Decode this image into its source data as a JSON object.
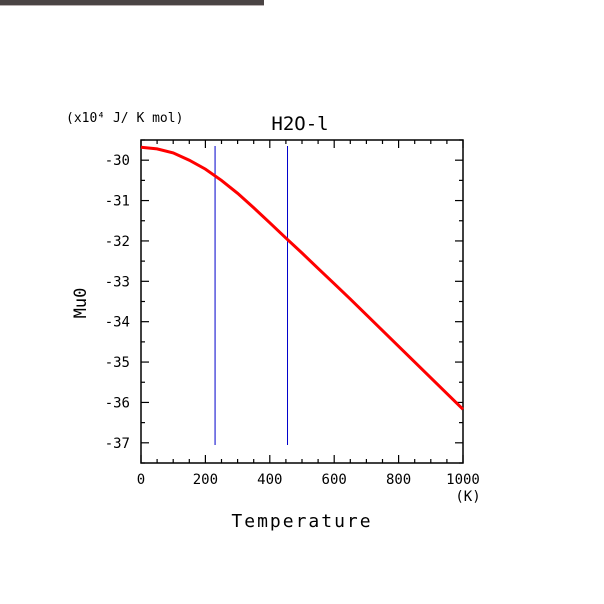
{
  "chart_data": {
    "type": "line",
    "title": "H2O-l",
    "ylabel": "Mu0",
    "xlabel": "Temperature",
    "y_unit": "(x10⁴ J/ K mol)",
    "x_unit": "(K)",
    "xlim": [
      0,
      1000
    ],
    "ylim": [
      -37.5,
      -29.5
    ],
    "x_ticks": [
      0,
      200,
      400,
      600,
      800,
      1000
    ],
    "y_ticks": [
      -30,
      -31,
      -32,
      -33,
      -34,
      -35,
      -36,
      -37
    ],
    "vertical_lines": [
      {
        "name": "marker-1",
        "x": 230
      },
      {
        "name": "marker-2",
        "x": 455
      }
    ],
    "series": [
      {
        "color": "#ff0000",
        "x": [
          0,
          50,
          100,
          150,
          200,
          250,
          300,
          350,
          400,
          450,
          500,
          550,
          600,
          650,
          700,
          750,
          800,
          850,
          900,
          950,
          1000
        ],
        "y": [
          -29.68,
          -29.72,
          -29.82,
          -30.0,
          -30.22,
          -30.5,
          -30.82,
          -31.18,
          -31.55,
          -31.93,
          -32.3,
          -32.68,
          -33.06,
          -33.44,
          -33.83,
          -34.22,
          -34.61,
          -35.0,
          -35.39,
          -35.78,
          -36.17
        ]
      }
    ],
    "colors": {
      "curve": "#ff0000",
      "vlines": "#0000cc",
      "axes": "#000000"
    }
  }
}
